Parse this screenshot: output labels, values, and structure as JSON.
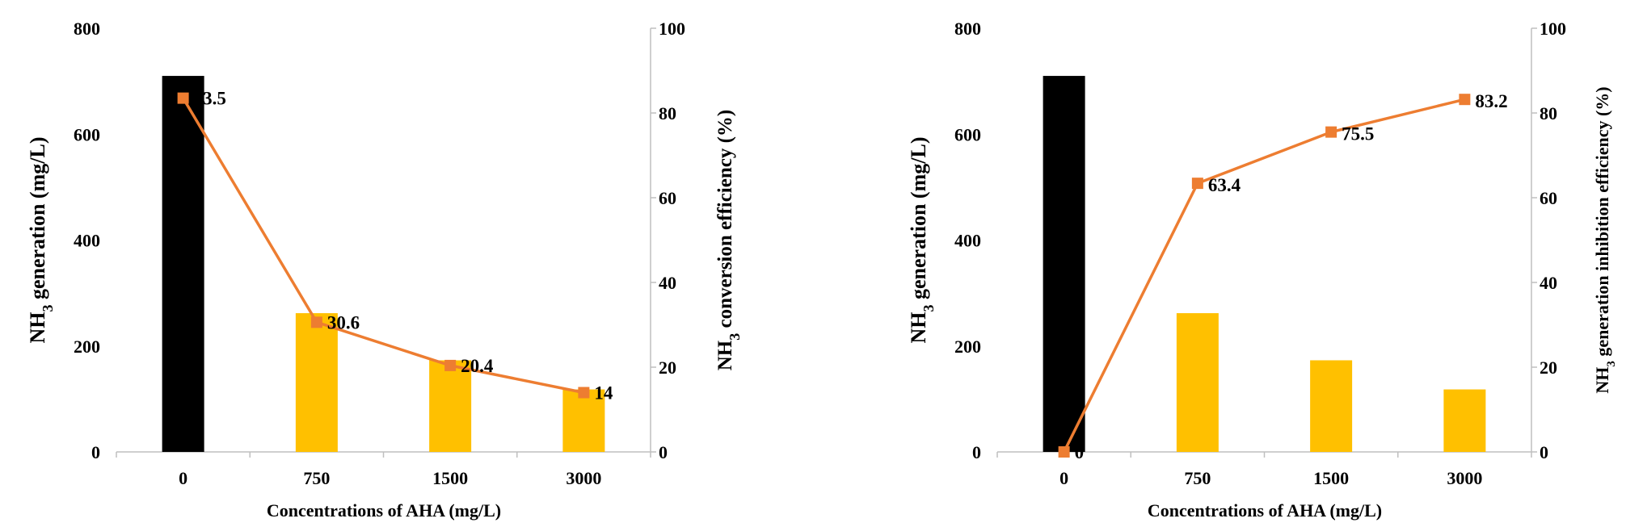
{
  "colors": {
    "control_bar": "#000000",
    "treatment_bar": "#FFC000",
    "line": "#ED7D31",
    "axis": "#bfbfbf",
    "text": "#000000"
  },
  "chart_data": [
    {
      "type": "bar+line",
      "xlabel": "Concentrations  of AHA  (mg/L)",
      "ylabel_main": "NH",
      "ylabel_sub": "3",
      "ylabel_rest": " generation  (mg/L)",
      "y2label_main": "NH",
      "y2label_sub": "3",
      "y2label_rest": " conversion efficiency  (%)",
      "categories": [
        "0",
        "750",
        "1500",
        "3000"
      ],
      "bars": [
        710,
        262,
        173,
        118
      ],
      "line": [
        83.5,
        30.6,
        20.4,
        14
      ],
      "line_labels": [
        "83.5",
        "30.6",
        "20.4",
        "14"
      ],
      "ylim": [
        0,
        800
      ],
      "yticks": [
        "0",
        "200",
        "400",
        "600",
        "800"
      ],
      "y2lim": [
        0,
        100
      ],
      "y2ticks": [
        "0",
        "20",
        "40",
        "60",
        "80",
        "100"
      ]
    },
    {
      "type": "bar+line",
      "xlabel": "Concentrations  of AHA  (mg/L)",
      "ylabel_main": "NH",
      "ylabel_sub": "3",
      "ylabel_rest": " generation  (mg/L)",
      "y2label_main": "NH",
      "y2label_sub": "3",
      "y2label_rest": " generation inhibition efficiency (%)",
      "categories": [
        "0",
        "750",
        "1500",
        "3000"
      ],
      "bars": [
        710,
        262,
        173,
        118
      ],
      "line": [
        0,
        63.4,
        75.5,
        83.2
      ],
      "line_labels": [
        "0",
        "63.4",
        "75.5",
        "83.2"
      ],
      "ylim": [
        0,
        800
      ],
      "yticks": [
        "0",
        "200",
        "400",
        "600",
        "800"
      ],
      "y2lim": [
        0,
        100
      ],
      "y2ticks": [
        "0",
        "20",
        "40",
        "60",
        "80",
        "100"
      ]
    }
  ]
}
